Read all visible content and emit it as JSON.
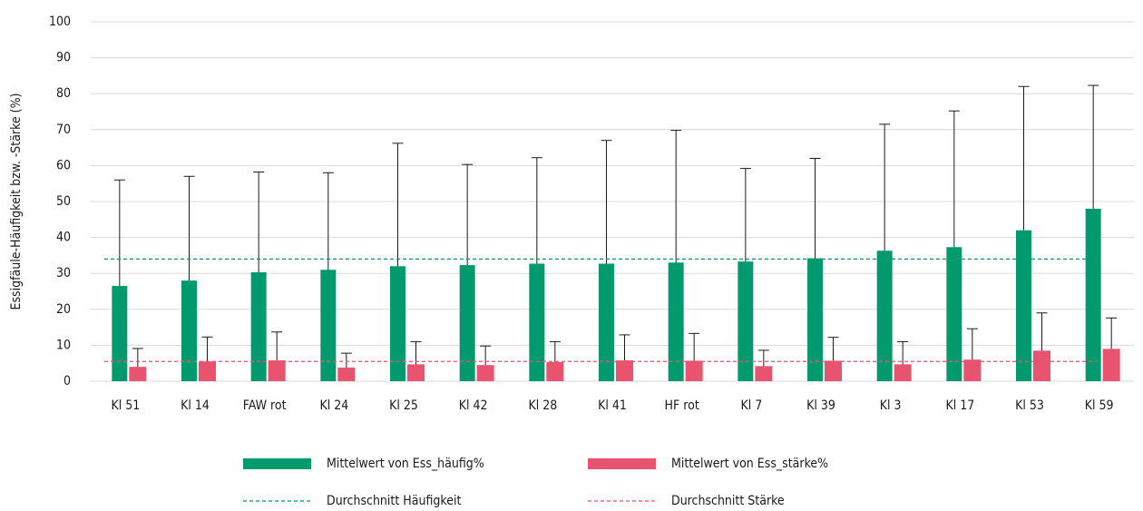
{
  "chart_data": {
    "type": "bar",
    "y_axis_label": "Essigfäule-Häufigkeit bzw. -Stärke (%)",
    "categories": [
      "Kl 51",
      "Kl 14",
      "FAW rot",
      "Kl 24",
      "Kl 25",
      "Kl 42",
      "Kl 28",
      "Kl 41",
      "HF rot",
      "Kl 7",
      "Kl 39",
      "Kl 3",
      "Kl 17",
      "Kl 53",
      "Kl 59"
    ],
    "series": [
      {
        "name": "Mittelwert von Ess_häufig%",
        "color": "#009a6e",
        "values": [
          26.5,
          28,
          30.3,
          31,
          32,
          32.3,
          32.7,
          32.7,
          33,
          33.3,
          34.2,
          36.3,
          37.3,
          42,
          48
        ],
        "errors": [
          29.5,
          29,
          27.9,
          27,
          34.2,
          28,
          29.5,
          34.3,
          36.8,
          25.9,
          27.8,
          35.2,
          37.9,
          40,
          34.3
        ]
      },
      {
        "name": "Mittelwert von Ess_stärke%",
        "color": "#e8546f",
        "values": [
          4,
          5.5,
          5.8,
          3.8,
          4.7,
          4.5,
          5.3,
          5.8,
          5.7,
          4.2,
          5.7,
          4.7,
          6,
          8.5,
          9
        ],
        "errors": [
          5.1,
          6.8,
          7.9,
          4.0,
          6.3,
          5.3,
          5.7,
          7.1,
          7.6,
          4.4,
          6.5,
          6.3,
          8.6,
          10.5,
          8.6
        ]
      }
    ],
    "reference_lines": [
      {
        "name": "Durchschnitt Häufigkeit",
        "value": 34,
        "color": "#009a6e"
      },
      {
        "name": "Durchschnitt Stärke",
        "value": 5.5,
        "color": "#e8546f"
      }
    ],
    "ylim": [
      0,
      100
    ],
    "yticks": [
      0,
      10,
      20,
      30,
      40,
      50,
      60,
      70,
      80,
      90,
      100
    ],
    "grid": true
  }
}
